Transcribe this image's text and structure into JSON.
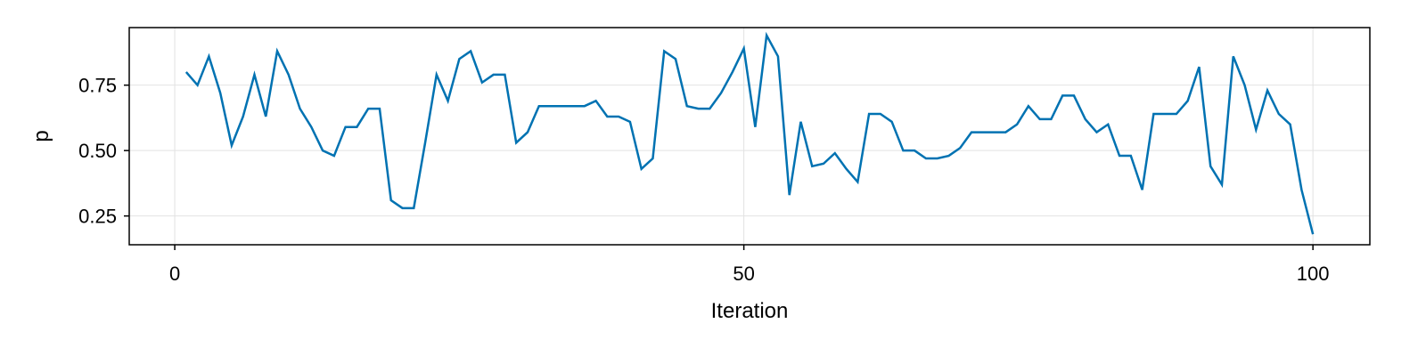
{
  "chart_data": {
    "type": "line",
    "title": "",
    "xlabel": "Iteration",
    "ylabel": "p",
    "xlim": [
      -4,
      105
    ],
    "ylim": [
      0.14,
      0.97
    ],
    "xticks": [
      0,
      50,
      100
    ],
    "xtick_labels": [
      "0",
      "50",
      "100"
    ],
    "yticks": [
      0.25,
      0.5,
      0.75
    ],
    "ytick_labels": [
      "0.25",
      "0.50",
      "0.75"
    ],
    "grid": true,
    "legend": "none",
    "series": [
      {
        "color": "#0072b2",
        "x": [
          1,
          2,
          3,
          4,
          5,
          6,
          7,
          8,
          9,
          10,
          11,
          12,
          13,
          14,
          15,
          16,
          17,
          18,
          19,
          20,
          21,
          22,
          23,
          24,
          25,
          26,
          27,
          28,
          29,
          30,
          31,
          32,
          33,
          34,
          35,
          36,
          37,
          38,
          39,
          40,
          41,
          42,
          43,
          44,
          45,
          46,
          47,
          48,
          49,
          50,
          51,
          52,
          53,
          54,
          55,
          56,
          57,
          58,
          59,
          60,
          61,
          62,
          63,
          64,
          65,
          66,
          67,
          68,
          69,
          70,
          71,
          72,
          73,
          74,
          75,
          76,
          77,
          78,
          79,
          80,
          81,
          82,
          83,
          84,
          85,
          86,
          87,
          88,
          89,
          90,
          91,
          92,
          93,
          94,
          95,
          96,
          97,
          98,
          99,
          100
        ],
        "values": [
          0.8,
          0.75,
          0.86,
          0.72,
          0.52,
          0.63,
          0.79,
          0.63,
          0.88,
          0.79,
          0.66,
          0.59,
          0.5,
          0.48,
          0.59,
          0.59,
          0.66,
          0.66,
          0.31,
          0.28,
          0.28,
          0.53,
          0.79,
          0.69,
          0.85,
          0.88,
          0.76,
          0.79,
          0.79,
          0.53,
          0.57,
          0.67,
          0.67,
          0.67,
          0.67,
          0.67,
          0.69,
          0.63,
          0.63,
          0.61,
          0.43,
          0.47,
          0.88,
          0.85,
          0.67,
          0.66,
          0.66,
          0.72,
          0.8,
          0.89,
          0.59,
          0.94,
          0.86,
          0.33,
          0.61,
          0.44,
          0.45,
          0.49,
          0.43,
          0.38,
          0.64,
          0.64,
          0.61,
          0.5,
          0.5,
          0.47,
          0.47,
          0.48,
          0.51,
          0.57,
          0.57,
          0.57,
          0.57,
          0.6,
          0.67,
          0.62,
          0.62,
          0.71,
          0.71,
          0.62,
          0.57,
          0.6,
          0.48,
          0.48,
          0.35,
          0.64,
          0.64,
          0.64,
          0.69,
          0.82,
          0.44,
          0.37,
          0.86,
          0.75,
          0.58,
          0.73,
          0.64,
          0.6,
          0.35,
          0.18
        ]
      }
    ]
  }
}
